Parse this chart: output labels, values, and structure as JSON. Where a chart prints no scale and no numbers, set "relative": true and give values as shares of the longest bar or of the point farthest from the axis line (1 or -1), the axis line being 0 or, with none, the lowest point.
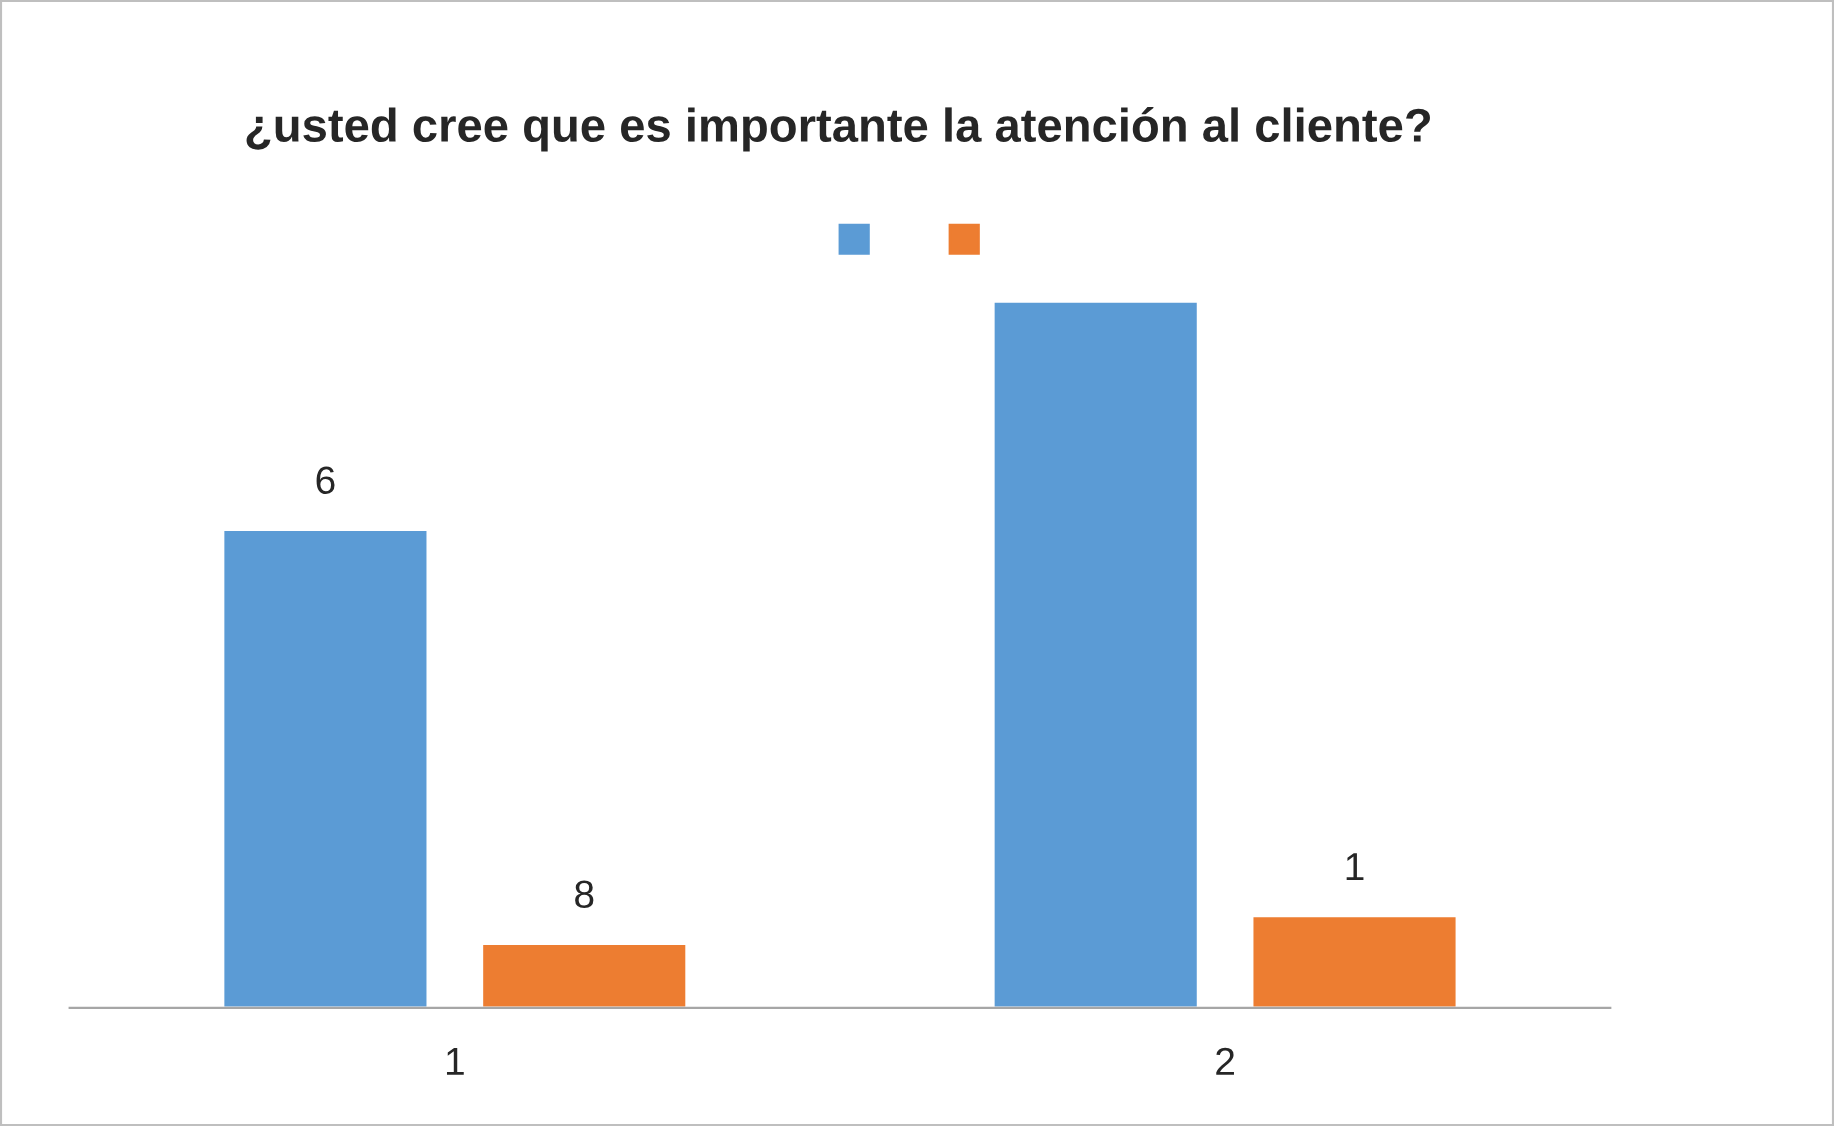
{
  "chart_data": {
    "type": "bar",
    "title": "¿usted cree que es importante la atención al cliente?",
    "categories": [
      "1",
      "2"
    ],
    "relative": true,
    "series": [
      {
        "color": "#5b9bd5",
        "values": [
          0.677,
          1
        ]
      },
      {
        "color": "#ed7d31",
        "values": [
          0.091,
          0.13
        ]
      }
    ],
    "annotations": [
      "6",
      "8",
      "1"
    ]
  }
}
